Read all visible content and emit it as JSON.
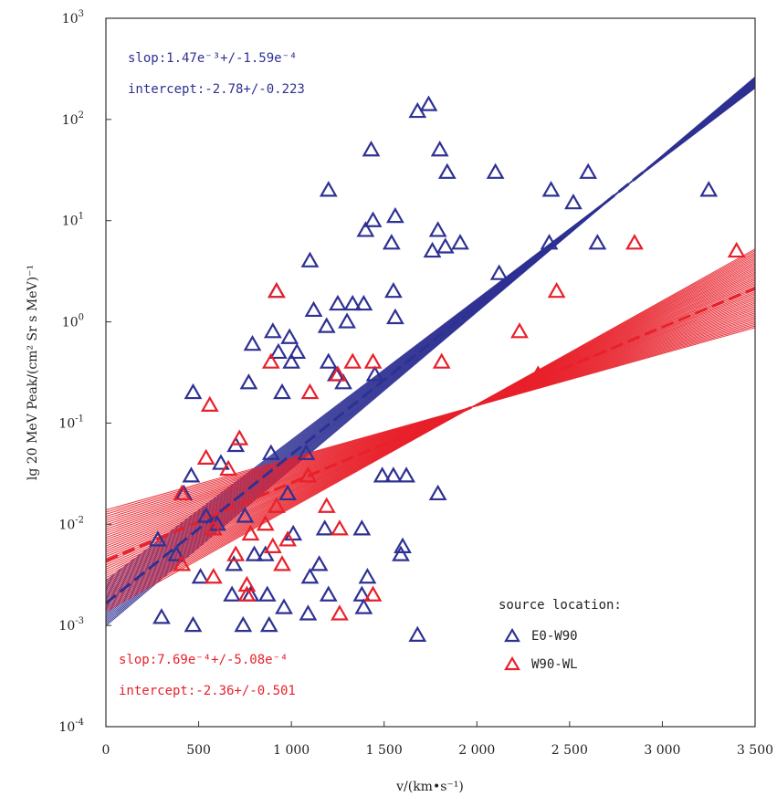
{
  "chart_data": {
    "type": "scatter",
    "xlabel": "v/(km•s⁻¹)",
    "ylabel": "lg 20 MeV Peak/(cm² Sr s MeV)⁻¹",
    "xlim": [
      0,
      3500
    ],
    "ylim_log10": [
      -4,
      3
    ],
    "y_scale": "log",
    "x_ticks": [
      0,
      500,
      1000,
      1500,
      2000,
      2500,
      3000,
      3500
    ],
    "x_tick_labels": [
      "0",
      "500",
      "1 000",
      "1 500",
      "2 000",
      "2 500",
      "3 000",
      "3 500"
    ],
    "y_ticks_exp": [
      -4,
      -3,
      -2,
      -1,
      0,
      1,
      2,
      3
    ],
    "y_tick_base": "10",
    "legend": {
      "title": "source location:",
      "placement": "right",
      "entries": [
        {
          "label": "E0-W90",
          "color": "#2e3192"
        },
        {
          "label": "W90-WL",
          "color": "#e8202a"
        }
      ]
    },
    "annotations": {
      "blue_slope": "slop:1.47e⁻³+/-1.59e⁻⁴",
      "blue_intercept": "intercept:-2.78+/-0.223",
      "red_slope": "slop:7.69e⁻⁴+/-5.08e⁻⁴",
      "red_intercept": "intercept:-2.36+/-0.501"
    },
    "fits": [
      {
        "color": "#2e3192",
        "slope": 0.00147,
        "slope_err": 0.000159,
        "intercept": -2.78,
        "intercept_err": 0.223
      },
      {
        "color": "#e8202a",
        "slope": 0.000769,
        "slope_err": 0.000508,
        "intercept": -2.36,
        "intercept_err": 0.501
      }
    ],
    "series": [
      {
        "color": "#2e3192",
        "points": [
          [
            1680,
            120
          ],
          [
            1740,
            140
          ],
          [
            1430,
            50
          ],
          [
            1800,
            50
          ],
          [
            1840,
            30
          ],
          [
            2100,
            30
          ],
          [
            2600,
            30
          ],
          [
            2400,
            20
          ],
          [
            2520,
            15
          ],
          [
            3250,
            20
          ],
          [
            1200,
            20
          ],
          [
            1440,
            10
          ],
          [
            1560,
            11
          ],
          [
            1400,
            8
          ],
          [
            1790,
            8
          ],
          [
            1540,
            6
          ],
          [
            1760,
            5
          ],
          [
            1830,
            5.5
          ],
          [
            1910,
            6
          ],
          [
            2390,
            6
          ],
          [
            2650,
            6
          ],
          [
            2120,
            3
          ],
          [
            1100,
            4
          ],
          [
            1550,
            2
          ],
          [
            1560,
            1.1
          ],
          [
            1120,
            1.3
          ],
          [
            1250,
            1.5
          ],
          [
            1330,
            1.5
          ],
          [
            1390,
            1.5
          ],
          [
            1300,
            1
          ],
          [
            1190,
            0.9
          ],
          [
            920,
            2
          ],
          [
            930,
            0.5
          ],
          [
            900,
            0.8
          ],
          [
            990,
            0.7
          ],
          [
            1030,
            0.5
          ],
          [
            790,
            0.6
          ],
          [
            1000,
            0.4
          ],
          [
            1200,
            0.4
          ],
          [
            1240,
            0.3
          ],
          [
            770,
            0.25
          ],
          [
            950,
            0.2
          ],
          [
            470,
            0.2
          ],
          [
            1280,
            0.25
          ],
          [
            1450,
            0.3
          ],
          [
            1490,
            0.03
          ],
          [
            1550,
            0.03
          ],
          [
            1620,
            0.03
          ],
          [
            1790,
            0.02
          ],
          [
            620,
            0.04
          ],
          [
            700,
            0.06
          ],
          [
            460,
            0.03
          ],
          [
            890,
            0.05
          ],
          [
            1080,
            0.05
          ],
          [
            980,
            0.02
          ],
          [
            420,
            0.02
          ],
          [
            540,
            0.012
          ],
          [
            600,
            0.01
          ],
          [
            750,
            0.012
          ],
          [
            1010,
            0.008
          ],
          [
            1180,
            0.009
          ],
          [
            1380,
            0.009
          ],
          [
            800,
            0.005
          ],
          [
            860,
            0.005
          ],
          [
            1100,
            0.003
          ],
          [
            1150,
            0.004
          ],
          [
            510,
            0.003
          ],
          [
            690,
            0.004
          ],
          [
            1590,
            0.005
          ],
          [
            1600,
            0.006
          ],
          [
            1410,
            0.003
          ],
          [
            870,
            0.002
          ],
          [
            780,
            0.002
          ],
          [
            680,
            0.002
          ],
          [
            960,
            0.0015
          ],
          [
            1200,
            0.002
          ],
          [
            1380,
            0.002
          ],
          [
            300,
            0.0012
          ],
          [
            470,
            0.001
          ],
          [
            740,
            0.001
          ],
          [
            880,
            0.001
          ],
          [
            1090,
            0.0013
          ],
          [
            1390,
            0.0015
          ],
          [
            1680,
            0.0008
          ],
          [
            380,
            0.005
          ],
          [
            280,
            0.007
          ]
        ]
      },
      {
        "color": "#e8202a",
        "points": [
          [
            2850,
            6
          ],
          [
            3400,
            5
          ],
          [
            2430,
            2
          ],
          [
            2230,
            0.8
          ],
          [
            1810,
            0.4
          ],
          [
            2330,
            0.3
          ],
          [
            920,
            2
          ],
          [
            890,
            0.4
          ],
          [
            1330,
            0.4
          ],
          [
            1440,
            0.4
          ],
          [
            1100,
            0.2
          ],
          [
            1250,
            0.3
          ],
          [
            560,
            0.15
          ],
          [
            540,
            0.045
          ],
          [
            720,
            0.07
          ],
          [
            660,
            0.035
          ],
          [
            1090,
            0.03
          ],
          [
            1190,
            0.015
          ],
          [
            920,
            0.015
          ],
          [
            860,
            0.01
          ],
          [
            1260,
            0.009
          ],
          [
            410,
            0.02
          ],
          [
            580,
            0.009
          ],
          [
            780,
            0.008
          ],
          [
            700,
            0.005
          ],
          [
            900,
            0.006
          ],
          [
            980,
            0.007
          ],
          [
            950,
            0.004
          ],
          [
            410,
            0.004
          ],
          [
            580,
            0.003
          ],
          [
            760,
            0.0025
          ],
          [
            760,
            0.002
          ],
          [
            1260,
            0.0013
          ],
          [
            1440,
            0.002
          ]
        ]
      }
    ]
  }
}
